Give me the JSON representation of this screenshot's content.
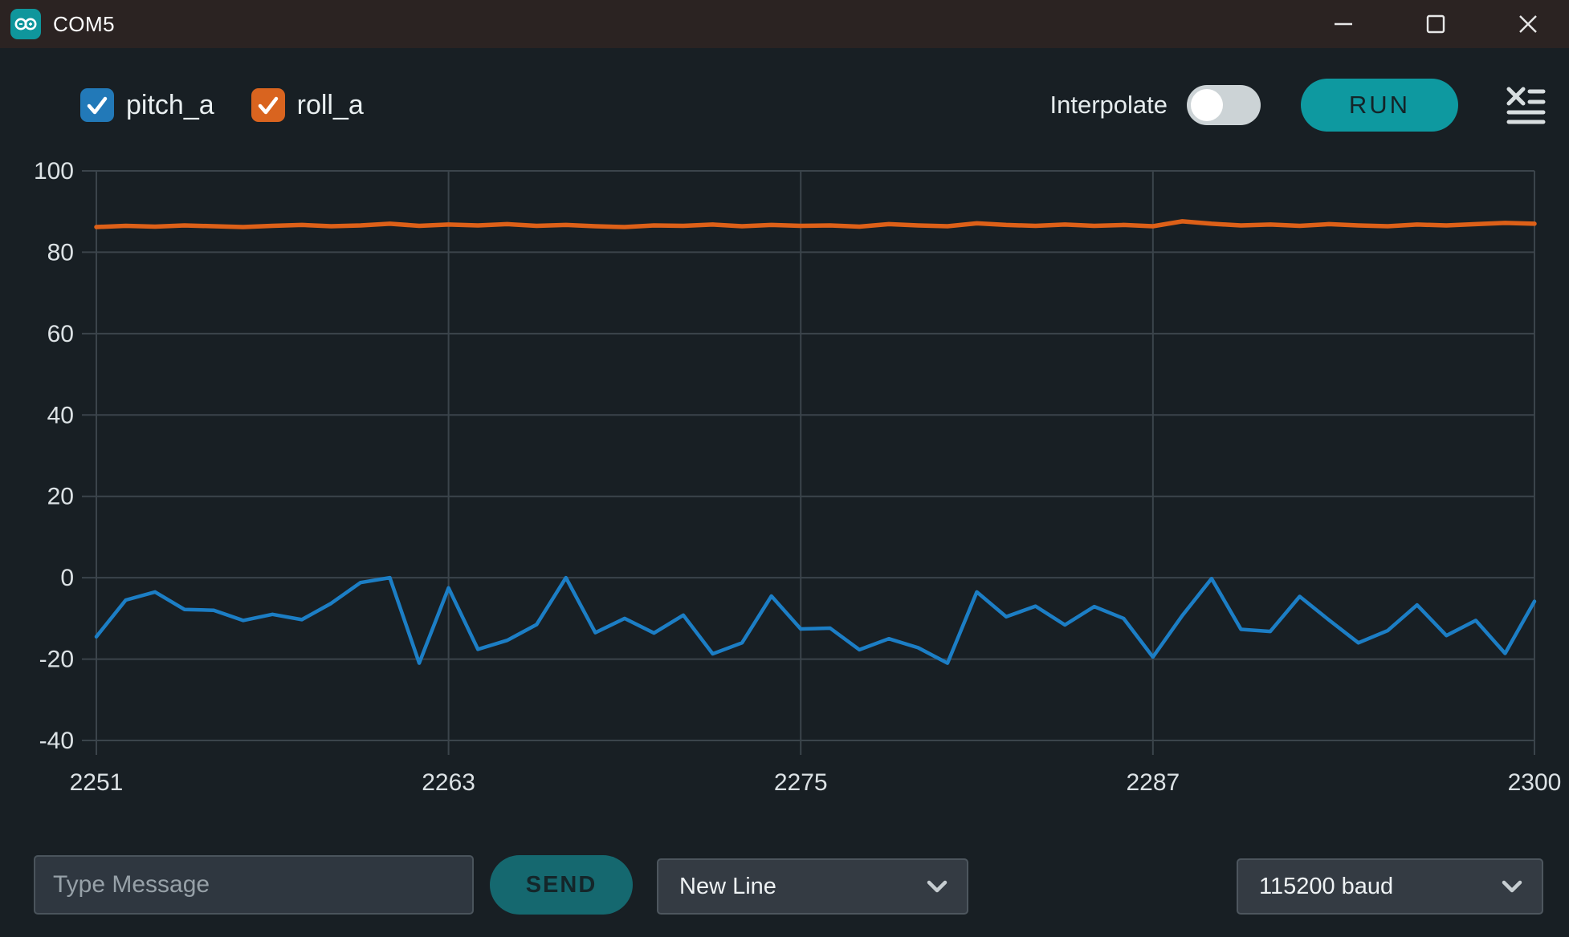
{
  "window": {
    "title": "COM5",
    "controls": {
      "minimize_icon": "minimize-icon",
      "maximize_icon": "maximize-icon",
      "close_icon": "close-icon"
    },
    "app_icon": "arduino-logo-icon"
  },
  "toolbar": {
    "legend": [
      {
        "label": "pitch_a",
        "checked": true,
        "color": "#1f77b4"
      },
      {
        "label": "roll_a",
        "checked": true,
        "color": "#d9631e"
      }
    ],
    "interpolate_label": "Interpolate",
    "interpolate_on": false,
    "run_label": "RUN",
    "clear_icon": "clear-output-icon"
  },
  "chart_data": {
    "type": "line",
    "x": [
      2251,
      2252,
      2253,
      2254,
      2255,
      2256,
      2257,
      2258,
      2259,
      2260,
      2261,
      2262,
      2263,
      2264,
      2265,
      2266,
      2267,
      2268,
      2269,
      2270,
      2271,
      2272,
      2273,
      2274,
      2275,
      2276,
      2277,
      2278,
      2279,
      2280,
      2281,
      2282,
      2283,
      2284,
      2285,
      2286,
      2287,
      2288,
      2289,
      2290,
      2291,
      2292,
      2293,
      2294,
      2295,
      2296,
      2297,
      2298,
      2299,
      2300
    ],
    "series": [
      {
        "name": "pitch_a",
        "color": "#1c7ec5",
        "values": [
          -14.5,
          -5.5,
          -3.5,
          -7.8,
          -8,
          -10.5,
          -9,
          -10.3,
          -6.3,
          -1.2,
          0,
          -21,
          -2.5,
          -17.6,
          -15.4,
          -11.5,
          0,
          -13.5,
          -10,
          -13.6,
          -9.2,
          -18.7,
          -16,
          -4.5,
          -12.6,
          -12.4,
          -17.7,
          -15,
          -17.2,
          -21,
          -3.5,
          -9.6,
          -7,
          -11.6,
          -7.1,
          -10,
          -19.5,
          -9.3,
          -0.2,
          -12.7,
          -13.2,
          -4.6,
          -10.4,
          -16,
          -13,
          -6.7,
          -14.2,
          -10.5,
          -18.6,
          -5.8
        ]
      },
      {
        "name": "roll_a",
        "color": "#dd6018",
        "values": [
          86.2,
          86.5,
          86.3,
          86.6,
          86.4,
          86.2,
          86.5,
          86.7,
          86.4,
          86.6,
          87.0,
          86.5,
          86.8,
          86.6,
          86.9,
          86.5,
          86.7,
          86.4,
          86.2,
          86.6,
          86.5,
          86.8,
          86.4,
          86.7,
          86.5,
          86.6,
          86.3,
          86.9,
          86.6,
          86.4,
          87.1,
          86.7,
          86.5,
          86.8,
          86.5,
          86.7,
          86.4,
          87.6,
          87.0,
          86.6,
          86.8,
          86.5,
          86.9,
          86.6,
          86.4,
          86.8,
          86.6,
          86.9,
          87.2,
          87.0
        ]
      }
    ],
    "xticks": [
      2251,
      2263,
      2275,
      2287,
      2300
    ],
    "yticks": [
      100,
      80,
      60,
      40,
      20,
      0,
      -20,
      -40
    ],
    "xlim": [
      2251,
      2300
    ],
    "ylim": [
      -40,
      100
    ],
    "grid": true,
    "legend_position": "top-left",
    "title": "",
    "xlabel": "",
    "ylabel": ""
  },
  "footer": {
    "message_placeholder": "Type Message",
    "send_label": "SEND",
    "line_ending_selected": "New Line",
    "baud_selected": "115200 baud"
  },
  "colors": {
    "accent_teal": "#0e99a0",
    "send_teal": "#15686f",
    "background": "#181f24",
    "titlebar": "#2b2322",
    "grid": "#3b444b",
    "tick_text": "#dce2e5"
  }
}
